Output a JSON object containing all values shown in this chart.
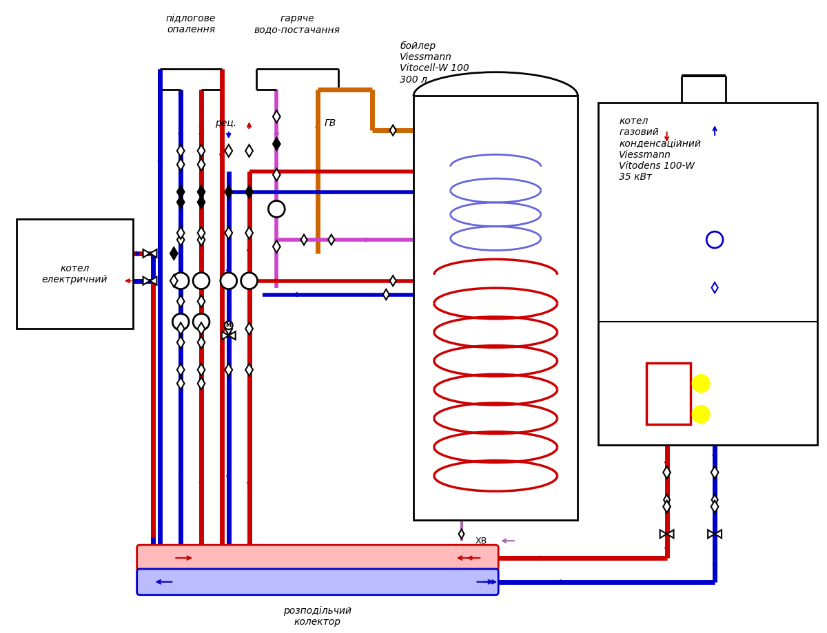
{
  "bg_color": "#ffffff",
  "red": "#cc0000",
  "blue": "#0000cc",
  "pink": "#cc44cc",
  "orange": "#cc6600",
  "black": "#000000",
  "yellow": "#ffff00",
  "lw": 5.0,
  "lw_thin": 2.0,
  "texts": {
    "floor_heat": "підлогове\nопалення",
    "hot_water": "гаряче\nводо-постачання",
    "boiler_label": "бойлер\nViessmann\nVitocell-W 100\n300 л",
    "gas_boiler_label": "котел\nгазовий\nконденсаційний\nViessmann\nVitodens 100-W\n35 кВт",
    "elec_boiler_label": "котел\nелектричний",
    "collector_label": "розподільчий\nколектор",
    "rec": "рец.",
    "gv": "ГВ",
    "xv": "ХВ"
  }
}
